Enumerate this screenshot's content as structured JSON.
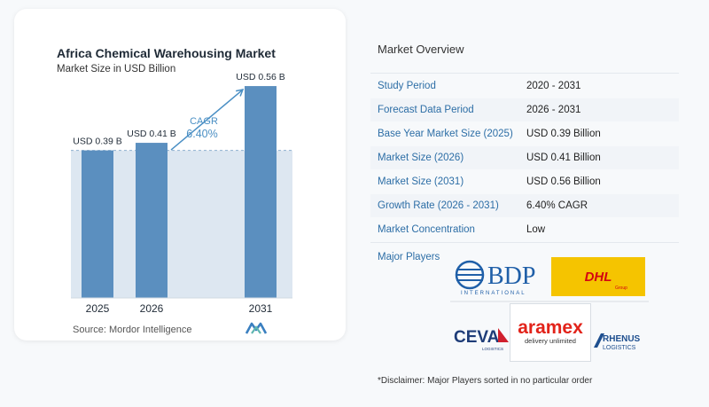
{
  "chart_data": {
    "type": "bar",
    "title": "Africa Chemical Warehousing Market",
    "subtitle": "Market Size in USD Billion",
    "categories": [
      "2025",
      "2026",
      "2031"
    ],
    "values": [
      0.39,
      0.41,
      0.56
    ],
    "data_labels": [
      "USD 0.39 B",
      "USD 0.41 B",
      "USD 0.56 B"
    ],
    "ylim": [
      0,
      0.6
    ],
    "annotation": {
      "label": "CAGR",
      "value": "6.40%"
    },
    "bar_color": "#5b8fbf",
    "shade_color": "#dde7f1"
  },
  "source": "Source:  Mordor Intelligence",
  "overview": {
    "title": "Market Overview",
    "rows": [
      {
        "label": "Study Period",
        "value": "2020 - 2031"
      },
      {
        "label": "Forecast Data Period",
        "value": "2026 - 2031"
      },
      {
        "label": "Base Year Market Size (2025)",
        "value": "USD 0.39 Billion"
      },
      {
        "label": "Market Size (2026)",
        "value": "USD 0.41 Billion"
      },
      {
        "label": "Market Size (2031)",
        "value": "USD 0.56 Billion"
      },
      {
        "label": "Growth Rate (2026 - 2031)",
        "value": "6.40% CAGR"
      },
      {
        "label": "Market Concentration",
        "value": "Low"
      }
    ],
    "players_label": "Major Players"
  },
  "players": {
    "bdp": {
      "name": "BDP",
      "sub": "INTERNATIONAL"
    },
    "dhl": {
      "name": "DHL",
      "sub": "Group"
    },
    "ceva": {
      "name": "CEVA",
      "sub": "LOGISTICS"
    },
    "aramex": {
      "name": "aramex",
      "sub": "delivery unlimited"
    },
    "rhenus": {
      "name": "RHENUS",
      "sub": "LOGISTICS"
    }
  },
  "disclaimer": "*Disclaimer: Major Players sorted in no particular order"
}
